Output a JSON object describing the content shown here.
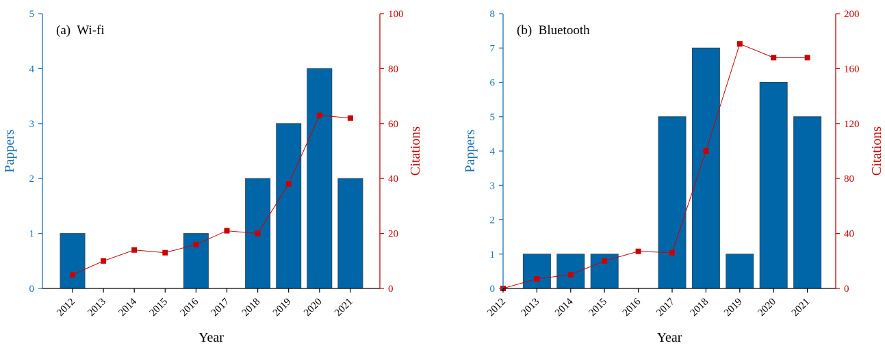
{
  "colors": {
    "bar": "#0066a8",
    "bar_stroke": "#2a4a63",
    "line": "#cc0000",
    "axis_left": "#1a70b0",
    "axis_right": "#cc0000",
    "text": "#000000"
  },
  "chart_data": [
    {
      "type": "bar",
      "panel_label": "(a)  Wi-fi",
      "xlabel": "Year",
      "ylabel": "Pappers",
      "y2label": "Citations",
      "categories": [
        "2012",
        "2013",
        "2014",
        "2015",
        "2016",
        "2017",
        "2018",
        "2019",
        "2020",
        "2021"
      ],
      "ylim": [
        0,
        5
      ],
      "yticks": [
        0,
        1,
        2,
        3,
        4,
        5
      ],
      "y2lim": [
        0,
        100
      ],
      "y2ticks": [
        0,
        20,
        40,
        60,
        80,
        100
      ],
      "series": [
        {
          "kind": "bar",
          "axis": "left",
          "values": [
            1,
            0,
            0,
            0,
            1,
            0,
            2,
            3,
            4,
            2
          ]
        },
        {
          "kind": "line",
          "axis": "right",
          "marker": "square",
          "values": [
            5,
            10,
            14,
            13,
            16,
            21,
            20,
            38,
            63,
            62
          ]
        }
      ]
    },
    {
      "type": "bar",
      "panel_label": "(b)  Bluetooth",
      "xlabel": "Year",
      "ylabel": "Pappers",
      "y2label": "Citations",
      "categories": [
        "2012",
        "2013",
        "2014",
        "2015",
        "2016",
        "2017",
        "2018",
        "2019",
        "2020",
        "2021"
      ],
      "ylim": [
        0,
        8
      ],
      "yticks": [
        0,
        1,
        2,
        3,
        4,
        5,
        6,
        7,
        8
      ],
      "y2lim": [
        0,
        200
      ],
      "y2ticks": [
        0,
        40,
        80,
        120,
        160,
        200
      ],
      "series": [
        {
          "kind": "bar",
          "axis": "left",
          "values": [
            0,
            1,
            1,
            1,
            0,
            5,
            7,
            1,
            6,
            5
          ]
        },
        {
          "kind": "line",
          "axis": "right",
          "marker": "square",
          "values": [
            0,
            7,
            10,
            20,
            27,
            26,
            100,
            178,
            168,
            168
          ]
        }
      ]
    }
  ]
}
